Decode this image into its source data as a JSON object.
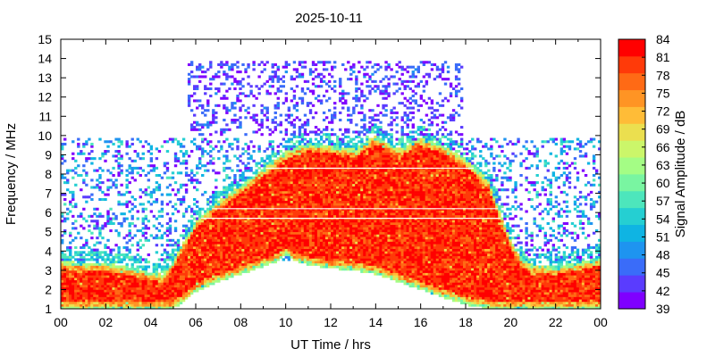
{
  "chart_data": {
    "type": "heatmap",
    "title": "2025-10-11",
    "xlabel": "UT Time / hrs",
    "ylabel": "Frequency / MHz",
    "colorbar_label": "Signal Amplitude / dB",
    "xlim": [
      0,
      24
    ],
    "ylim": [
      1,
      15
    ],
    "x_ticks": [
      "00",
      "02",
      "04",
      "06",
      "08",
      "10",
      "12",
      "14",
      "16",
      "18",
      "20",
      "22",
      "00"
    ],
    "y_ticks": [
      "1",
      "2",
      "3",
      "4",
      "5",
      "6",
      "7",
      "8",
      "9",
      "10",
      "11",
      "12",
      "13",
      "14",
      "15"
    ],
    "colorbar_range": [
      39,
      84
    ],
    "colorbar_ticks": [
      "39",
      "42",
      "45",
      "48",
      "51",
      "54",
      "57",
      "60",
      "63",
      "66",
      "69",
      "72",
      "75",
      "78",
      "81",
      "84"
    ],
    "colorbar_colors": [
      "#7f00ff",
      "#5a3cfe",
      "#3a6cf9",
      "#1e94f0",
      "#0fb4e3",
      "#25cfd2",
      "#4de6bc",
      "#79f5a1",
      "#a4fd85",
      "#cbf66a",
      "#ebdf4f",
      "#ffbc37",
      "#ff9424",
      "#ff6a15",
      "#ff3a09",
      "#ff0000"
    ],
    "band_edges": {
      "hours": [
        0,
        1,
        2,
        3,
        4,
        4.5,
        5,
        5.5,
        6,
        7,
        8,
        9,
        10,
        11,
        12,
        13,
        14,
        15,
        16,
        17,
        18,
        19,
        20,
        20.5,
        21,
        22,
        23,
        24
      ],
      "top_mhz": [
        3.5,
        3.4,
        3.4,
        3.2,
        2.9,
        2.8,
        3.5,
        4.6,
        5.6,
        6.6,
        7.4,
        8.3,
        9.2,
        9.6,
        9.5,
        9.3,
        10.0,
        9.3,
        9.9,
        9.5,
        8.8,
        7.7,
        4.6,
        3.6,
        3.3,
        3.2,
        3.4,
        3.7
      ],
      "bottom_mhz": [
        1,
        1,
        1,
        1,
        1,
        1,
        1,
        1.4,
        1.9,
        2.4,
        2.8,
        3.2,
        3.6,
        3.3,
        3.1,
        3.0,
        2.8,
        2.4,
        2.0,
        1.6,
        1.2,
        1,
        1,
        1,
        1,
        1,
        1,
        1
      ],
      "gap_top_mhz": [
        0,
        0,
        0,
        0,
        0,
        0,
        0,
        1,
        1.6,
        2.0,
        2.4,
        2.8,
        3.8,
        3.0,
        2.8,
        2.6,
        2.3,
        2.0,
        1.6,
        1.2,
        0,
        0,
        0,
        0,
        0,
        0,
        0,
        0
      ]
    },
    "noise_regions": [
      {
        "x_range": [
          0,
          24
        ],
        "y_range": [
          3.5,
          9.9
        ],
        "amplitude_db": [
          39,
          57
        ]
      },
      {
        "x_range": [
          5.6,
          17.9
        ],
        "y_range": [
          10,
          13.9
        ],
        "amplitude_db": [
          39,
          48
        ]
      }
    ],
    "horizontal_artifacts_mhz": [
      5.7,
      6.2,
      8.3
    ]
  }
}
